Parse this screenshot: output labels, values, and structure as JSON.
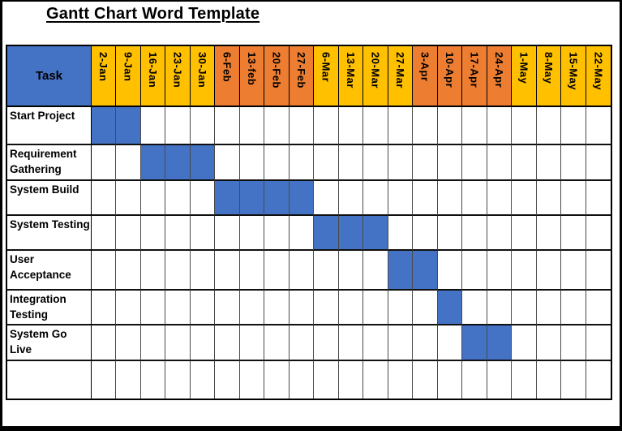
{
  "page": {
    "title": "Gantt Chart Word Template"
  },
  "colors": {
    "bar_blue": "#4472C4",
    "header_blue": "#4472C4",
    "month_yellow": "#FFC000",
    "month_orange": "#ED7D31",
    "grid_line": "#000000"
  },
  "table": {
    "task_header": "Task",
    "columns": [
      {
        "label": "2-Jan",
        "color": "yellow"
      },
      {
        "label": "9-Jan",
        "color": "yellow"
      },
      {
        "label": "16-Jan",
        "color": "yellow"
      },
      {
        "label": "23-Jan",
        "color": "yellow"
      },
      {
        "label": "30-Jan",
        "color": "yellow"
      },
      {
        "label": "6-Feb",
        "color": "orange"
      },
      {
        "label": "13-feb",
        "color": "orange"
      },
      {
        "label": "20-Feb",
        "color": "orange"
      },
      {
        "label": "27-Feb",
        "color": "orange"
      },
      {
        "label": "6-Mar",
        "color": "yellow"
      },
      {
        "label": "13-Mar",
        "color": "yellow"
      },
      {
        "label": "20-Mar",
        "color": "yellow"
      },
      {
        "label": "27-Mar",
        "color": "yellow"
      },
      {
        "label": "3-Apr",
        "color": "orange"
      },
      {
        "label": "10-Apr",
        "color": "orange"
      },
      {
        "label": "17-Apr",
        "color": "orange"
      },
      {
        "label": "24-Apr",
        "color": "orange"
      },
      {
        "label": "1-May",
        "color": "yellow"
      },
      {
        "label": "8-May",
        "color": "yellow"
      },
      {
        "label": "15-May",
        "color": "yellow"
      },
      {
        "label": "22-May",
        "color": "yellow"
      }
    ],
    "rows": [
      {
        "name": "Start Project",
        "bars": [
          0,
          1
        ]
      },
      {
        "name": "Requirement\nGathering",
        "bars": [
          2,
          3,
          4
        ]
      },
      {
        "name": "System Build",
        "bars": [
          5,
          6,
          7,
          8
        ]
      },
      {
        "name": "System Testing",
        "bars": [
          9,
          10,
          11
        ]
      },
      {
        "name": "User\nAcceptance",
        "bars": [
          12,
          13
        ]
      },
      {
        "name": "Integration\nTesting",
        "bars": [
          14
        ]
      },
      {
        "name": "System Go\nLive",
        "bars": [
          15,
          16
        ]
      },
      {
        "name": "",
        "bars": []
      }
    ]
  },
  "chart_data": {
    "type": "gantt",
    "title": "Gantt Chart Word Template",
    "x_categories": [
      "2-Jan",
      "9-Jan",
      "16-Jan",
      "23-Jan",
      "30-Jan",
      "6-Feb",
      "13-feb",
      "20-Feb",
      "27-Feb",
      "6-Mar",
      "13-Mar",
      "20-Mar",
      "27-Mar",
      "3-Apr",
      "10-Apr",
      "17-Apr",
      "24-Apr",
      "1-May",
      "8-May",
      "15-May",
      "22-May"
    ],
    "tasks": [
      {
        "name": "Start Project",
        "start": "2-Jan",
        "end": "9-Jan",
        "column_indexes": [
          0,
          1
        ]
      },
      {
        "name": "Requirement Gathering",
        "start": "16-Jan",
        "end": "30-Jan",
        "column_indexes": [
          2,
          3,
          4
        ]
      },
      {
        "name": "System Build",
        "start": "6-Feb",
        "end": "27-Feb",
        "column_indexes": [
          5,
          6,
          7,
          8
        ]
      },
      {
        "name": "System Testing",
        "start": "6-Mar",
        "end": "20-Mar",
        "column_indexes": [
          9,
          10,
          11
        ]
      },
      {
        "name": "User Acceptance",
        "start": "27-Mar",
        "end": "3-Apr",
        "column_indexes": [
          12,
          13
        ]
      },
      {
        "name": "Integration Testing",
        "start": "10-Apr",
        "end": "10-Apr",
        "column_indexes": [
          14
        ]
      },
      {
        "name": "System Go Live",
        "start": "17-Apr",
        "end": "24-Apr",
        "column_indexes": [
          15,
          16
        ]
      }
    ],
    "layout": {
      "grid": true,
      "legend": false,
      "bar_fill": "#4472C4"
    }
  }
}
